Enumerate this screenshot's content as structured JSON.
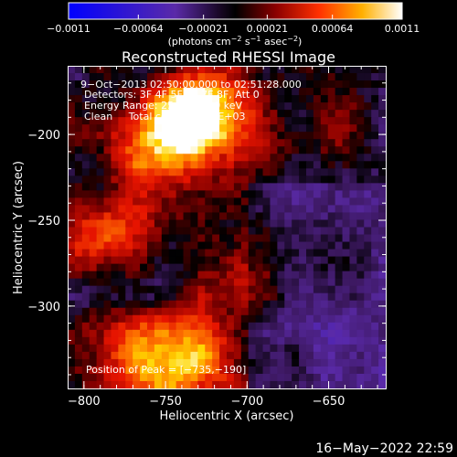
{
  "chart_data": {
    "type": "heatmap",
    "title": "Reconstructed RHESSI Image",
    "xlabel": "Heliocentric X (arcsec)",
    "ylabel": "Heliocentric Y (arcsec)",
    "xlim": [
      -810,
      -615
    ],
    "ylim": [
      -348,
      -160
    ],
    "x_ticks": [
      -800,
      -750,
      -700,
      -650
    ],
    "x_tick_labels": [
      "−800",
      "−750",
      "−700",
      "−650"
    ],
    "y_ticks": [
      -200,
      -250,
      -300
    ],
    "y_tick_labels": [
      "−200",
      "−250",
      "−300"
    ],
    "colorbar": {
      "range": [
        -0.0011,
        0.0011
      ],
      "ticks": [
        -0.0011,
        -0.00064,
        -0.00021,
        0.00021,
        0.00064,
        0.0011
      ],
      "tick_labels": [
        "−0.0011",
        "−0.00064",
        "−0.00021",
        "0.00021",
        "0.00064",
        "0.0011"
      ],
      "unit_label": "(photons cm",
      "unit_sup1": "−2",
      "unit_mid": " s",
      "unit_sup2": "−1",
      "unit_tail": " asec",
      "unit_sup3": "−2",
      "unit_end": ")"
    },
    "annotations": {
      "time_range": "9−Oct−2013 02:50:00.000 to 02:51:28.000",
      "detectors": "Detectors: 3F 4F 5F 6F 7F 8F, Att 0",
      "energy": "Energy Range: 25.0 − 50.0 keV",
      "method": "Clean     Total counts: 5.27E+03",
      "peak": "Position of Peak = [−735,−190]"
    },
    "peak_position": [
      -735,
      -190
    ],
    "colors": {
      "background": "#000000",
      "text": "#ffffff",
      "colormap": [
        "#0000ff",
        "#5a2aa8",
        "#4a1f7a",
        "#000000",
        "#7a0000",
        "#e00000",
        "#ff6a00",
        "#ffd400",
        "#ffffff"
      ]
    }
  },
  "footer": {
    "timestamp": "16−May−2022 22:59"
  }
}
